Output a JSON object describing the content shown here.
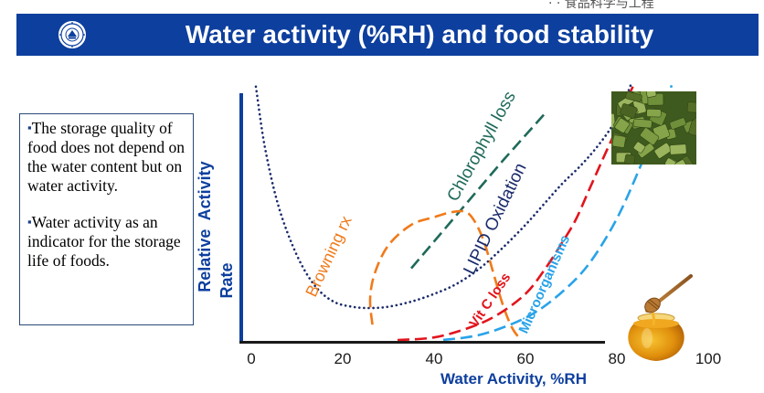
{
  "header": {
    "title": "Water activity (%RH) and food stability",
    "top_text": "· · 食品科学与工程"
  },
  "colors": {
    "title_bar": "#0d3f9e",
    "axis": "#0d3f9e",
    "lipid": "#1a2a6b",
    "chlorophyll": "#1f6a5a",
    "browning": "#f07a1a",
    "vitc": "#e2141c",
    "microorganisms": "#29a3e8"
  },
  "text_panel": {
    "paragraphs": [
      "The storage quality of food does not depend on the water content but on water activity.",
      "Water activity as an indicator for the storage life of foods."
    ]
  },
  "images": {
    "top_right": "dried-greens-photo",
    "bottom_right": "honey-jar-with-dipper"
  },
  "chart_data": {
    "type": "line",
    "xlabel": "Water Activity, %RH",
    "ylabel_line1": "Relative  Activity",
    "ylabel_line2": "Rate",
    "xlim": [
      0,
      100
    ],
    "ylim": [
      0,
      1
    ],
    "x_ticks": [
      "0",
      "20",
      "40",
      "60",
      "80",
      "100"
    ],
    "grid": false,
    "series": [
      {
        "name": "LIPID Oxidation",
        "key": "lipid",
        "style": "dotted",
        "x": [
          1,
          3,
          6,
          10,
          14,
          18,
          22,
          26,
          30,
          35,
          40,
          45,
          50,
          55,
          60,
          64,
          68,
          72,
          75,
          78,
          80,
          82,
          83
        ],
        "y": [
          0.99,
          0.75,
          0.52,
          0.33,
          0.21,
          0.15,
          0.13,
          0.125,
          0.13,
          0.15,
          0.18,
          0.22,
          0.28,
          0.36,
          0.45,
          0.53,
          0.61,
          0.68,
          0.74,
          0.81,
          0.87,
          0.95,
          0.995
        ]
      },
      {
        "name": "Chlorophyll loss",
        "key": "chlorophyll",
        "style": "dashed",
        "x": [
          35,
          45,
          55,
          64
        ],
        "y": [
          0.28,
          0.49,
          0.7,
          0.88
        ]
      },
      {
        "name": "Browning rx",
        "key": "browning",
        "style": "dashed",
        "x": [
          26.5,
          26,
          27,
          30,
          35,
          40,
          44,
          47,
          49,
          51,
          53,
          55,
          57,
          59
        ],
        "y": [
          0.06,
          0.16,
          0.26,
          0.37,
          0.45,
          0.48,
          0.5,
          0.5,
          0.46,
          0.38,
          0.26,
          0.14,
          0.05,
          0.0
        ]
      },
      {
        "name": "Vit C loss",
        "key": "vitc",
        "style": "dashed",
        "x": [
          32,
          40,
          48,
          54,
          60,
          64,
          68,
          71,
          74,
          77,
          80,
          82,
          83.5
        ],
        "y": [
          0.0,
          0.01,
          0.05,
          0.1,
          0.18,
          0.27,
          0.38,
          0.47,
          0.59,
          0.71,
          0.83,
          0.93,
          0.99
        ]
      },
      {
        "name": "Microorganisms",
        "key": "microorganisms",
        "style": "dashed",
        "x": [
          42,
          50,
          58,
          64,
          70,
          74,
          78,
          81,
          84,
          87,
          89,
          91,
          92
        ],
        "y": [
          0.0,
          0.02,
          0.07,
          0.13,
          0.22,
          0.3,
          0.41,
          0.51,
          0.63,
          0.76,
          0.86,
          0.95,
          0.995
        ]
      }
    ]
  }
}
